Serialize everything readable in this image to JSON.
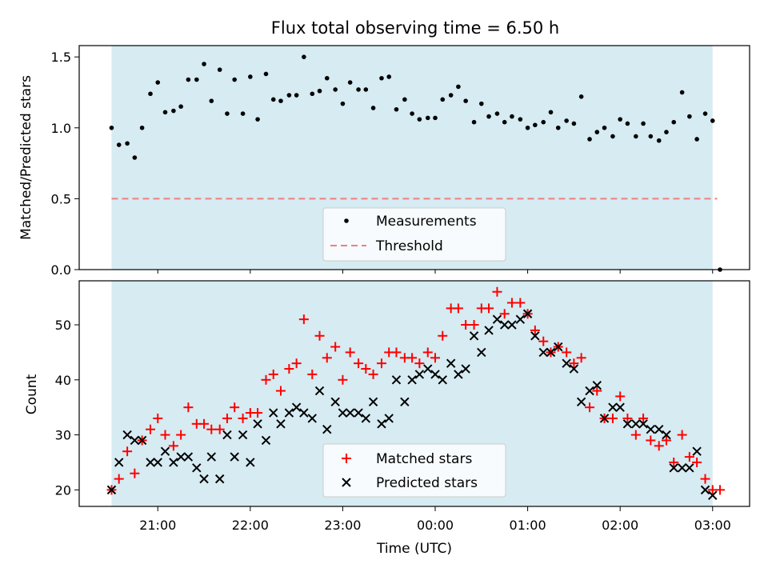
{
  "title": "Flux total observing time = 6.50 h",
  "colors": {
    "band": "#add8e6",
    "threshold": "#f08080",
    "matched": "#ff0000",
    "predicted": "#000000",
    "measurement": "#000000"
  },
  "chart_data": [
    {
      "type": "scatter",
      "ylabel": "Matched/Predicted stars",
      "ylim": [
        0,
        1.58
      ],
      "yticks": [
        "0.0",
        "0.5",
        "1.0",
        "1.5"
      ],
      "legend": "lower-center",
      "observing_band": {
        "start_h": -3.5,
        "end_h": 3.0
      },
      "threshold": 0.5,
      "series": [
        {
          "name": "Measurements",
          "x": [
            -3.5,
            -3.42,
            -3.33,
            -3.25,
            -3.17,
            -3.08,
            -3.0,
            -2.92,
            -2.83,
            -2.75,
            -2.67,
            -2.58,
            -2.5,
            -2.42,
            -2.33,
            -2.25,
            -2.17,
            -2.08,
            -2.0,
            -1.92,
            -1.83,
            -1.75,
            -1.67,
            -1.58,
            -1.5,
            -1.42,
            -1.33,
            -1.25,
            -1.17,
            -1.08,
            -1.0,
            -0.92,
            -0.83,
            -0.75,
            -0.67,
            -0.58,
            -0.5,
            -0.42,
            -0.33,
            -0.25,
            -0.17,
            -0.08,
            0.0,
            0.08,
            0.17,
            0.25,
            0.33,
            0.42,
            0.5,
            0.58,
            0.67,
            0.75,
            0.83,
            0.92,
            1.0,
            1.08,
            1.17,
            1.25,
            1.33,
            1.42,
            1.5,
            1.58,
            1.67,
            1.75,
            1.83,
            1.92,
            2.0,
            2.08,
            2.17,
            2.25,
            2.33,
            2.42,
            2.5,
            2.58,
            2.67,
            2.75,
            2.83,
            2.92,
            3.0,
            3.08
          ],
          "y": [
            1.0,
            0.88,
            0.89,
            0.79,
            1.0,
            1.24,
            1.32,
            1.11,
            1.12,
            1.15,
            1.34,
            1.34,
            1.45,
            1.19,
            1.41,
            1.1,
            1.34,
            1.1,
            1.36,
            1.06,
            1.38,
            1.2,
            1.19,
            1.23,
            1.23,
            1.5,
            1.24,
            1.26,
            1.35,
            1.27,
            1.17,
            1.32,
            1.27,
            1.27,
            1.14,
            1.35,
            1.36,
            1.13,
            1.2,
            1.1,
            1.06,
            1.07,
            1.07,
            1.2,
            1.23,
            1.29,
            1.19,
            1.04,
            1.17,
            1.08,
            1.1,
            1.04,
            1.08,
            1.06,
            1.0,
            1.02,
            1.04,
            1.11,
            1.0,
            1.05,
            1.03,
            1.22,
            0.92,
            0.97,
            1.0,
            0.94,
            1.06,
            1.03,
            0.94,
            1.03,
            0.94,
            0.91,
            0.97,
            1.04,
            1.25,
            1.08,
            0.92,
            1.1,
            1.05,
            0.0
          ]
        },
        {
          "name": "Threshold",
          "x": [
            -3.5,
            3.05
          ],
          "y": [
            0.5,
            0.5
          ]
        }
      ]
    },
    {
      "type": "scatter",
      "xlabel": "Time (UTC)",
      "ylabel": "Count",
      "ylim": [
        17,
        58
      ],
      "yticks": [
        "20",
        "30",
        "40",
        "50"
      ],
      "xticks": [
        "21:00",
        "22:00",
        "23:00",
        "00:00",
        "01:00",
        "02:00",
        "03:00"
      ],
      "legend": "lower-center",
      "observing_band": {
        "start_h": -3.5,
        "end_h": 3.0
      },
      "series": [
        {
          "name": "Matched stars",
          "x": [
            -3.5,
            -3.42,
            -3.33,
            -3.25,
            -3.17,
            -3.08,
            -3.0,
            -2.92,
            -2.83,
            -2.75,
            -2.67,
            -2.58,
            -2.5,
            -2.42,
            -2.33,
            -2.25,
            -2.17,
            -2.08,
            -2.0,
            -1.92,
            -1.83,
            -1.75,
            -1.67,
            -1.58,
            -1.5,
            -1.42,
            -1.33,
            -1.25,
            -1.17,
            -1.08,
            -1.0,
            -0.92,
            -0.83,
            -0.75,
            -0.67,
            -0.58,
            -0.5,
            -0.42,
            -0.33,
            -0.25,
            -0.17,
            -0.08,
            0.0,
            0.08,
            0.17,
            0.25,
            0.33,
            0.42,
            0.5,
            0.58,
            0.67,
            0.75,
            0.83,
            0.92,
            1.0,
            1.08,
            1.17,
            1.25,
            1.33,
            1.42,
            1.5,
            1.58,
            1.67,
            1.75,
            1.83,
            1.92,
            2.0,
            2.08,
            2.17,
            2.25,
            2.33,
            2.42,
            2.5,
            2.58,
            2.67,
            2.75,
            2.83,
            2.92,
            3.0,
            3.08
          ],
          "y": [
            20,
            22,
            27,
            23,
            29,
            31,
            33,
            30,
            28,
            30,
            35,
            32,
            32,
            31,
            31,
            33,
            35,
            33,
            34,
            34,
            40,
            41,
            38,
            42,
            43,
            51,
            41,
            48,
            44,
            46,
            40,
            45,
            43,
            42,
            41,
            43,
            45,
            45,
            44,
            44,
            43,
            45,
            44,
            48,
            53,
            53,
            50,
            50,
            53,
            53,
            56,
            52,
            54,
            54,
            52,
            49,
            47,
            45,
            46,
            45,
            43,
            44,
            35,
            38,
            33,
            33,
            37,
            33,
            30,
            33,
            29,
            28,
            29,
            25,
            30,
            26,
            25,
            22,
            20,
            20
          ]
        },
        {
          "name": "Predicted stars",
          "x": [
            -3.5,
            -3.42,
            -3.33,
            -3.25,
            -3.17,
            -3.08,
            -3.0,
            -2.92,
            -2.83,
            -2.75,
            -2.67,
            -2.58,
            -2.5,
            -2.42,
            -2.33,
            -2.25,
            -2.17,
            -2.08,
            -2.0,
            -1.92,
            -1.83,
            -1.75,
            -1.67,
            -1.58,
            -1.5,
            -1.42,
            -1.33,
            -1.25,
            -1.17,
            -1.08,
            -1.0,
            -0.92,
            -0.83,
            -0.75,
            -0.67,
            -0.58,
            -0.5,
            -0.42,
            -0.33,
            -0.25,
            -0.17,
            -0.08,
            0.0,
            0.08,
            0.17,
            0.25,
            0.33,
            0.42,
            0.5,
            0.58,
            0.67,
            0.75,
            0.83,
            0.92,
            1.0,
            1.08,
            1.17,
            1.25,
            1.33,
            1.42,
            1.5,
            1.58,
            1.67,
            1.75,
            1.83,
            1.92,
            2.0,
            2.08,
            2.17,
            2.25,
            2.33,
            2.42,
            2.5,
            2.58,
            2.67,
            2.75,
            2.83,
            2.92,
            3.0
          ],
          "y": [
            20,
            25,
            30,
            29,
            29,
            25,
            25,
            27,
            25,
            26,
            26,
            24,
            22,
            26,
            22,
            30,
            26,
            30,
            25,
            32,
            29,
            34,
            32,
            34,
            35,
            34,
            33,
            38,
            31,
            36,
            34,
            34,
            34,
            33,
            36,
            32,
            33,
            40,
            36,
            40,
            41,
            42,
            41,
            40,
            43,
            41,
            42,
            48,
            45,
            49,
            51,
            50,
            50,
            51,
            52,
            48,
            45,
            45,
            46,
            43,
            42,
            36,
            38,
            39,
            33,
            35,
            35,
            32,
            32,
            32,
            31,
            31,
            30,
            24,
            24,
            24,
            27,
            20,
            19
          ]
        }
      ]
    }
  ]
}
